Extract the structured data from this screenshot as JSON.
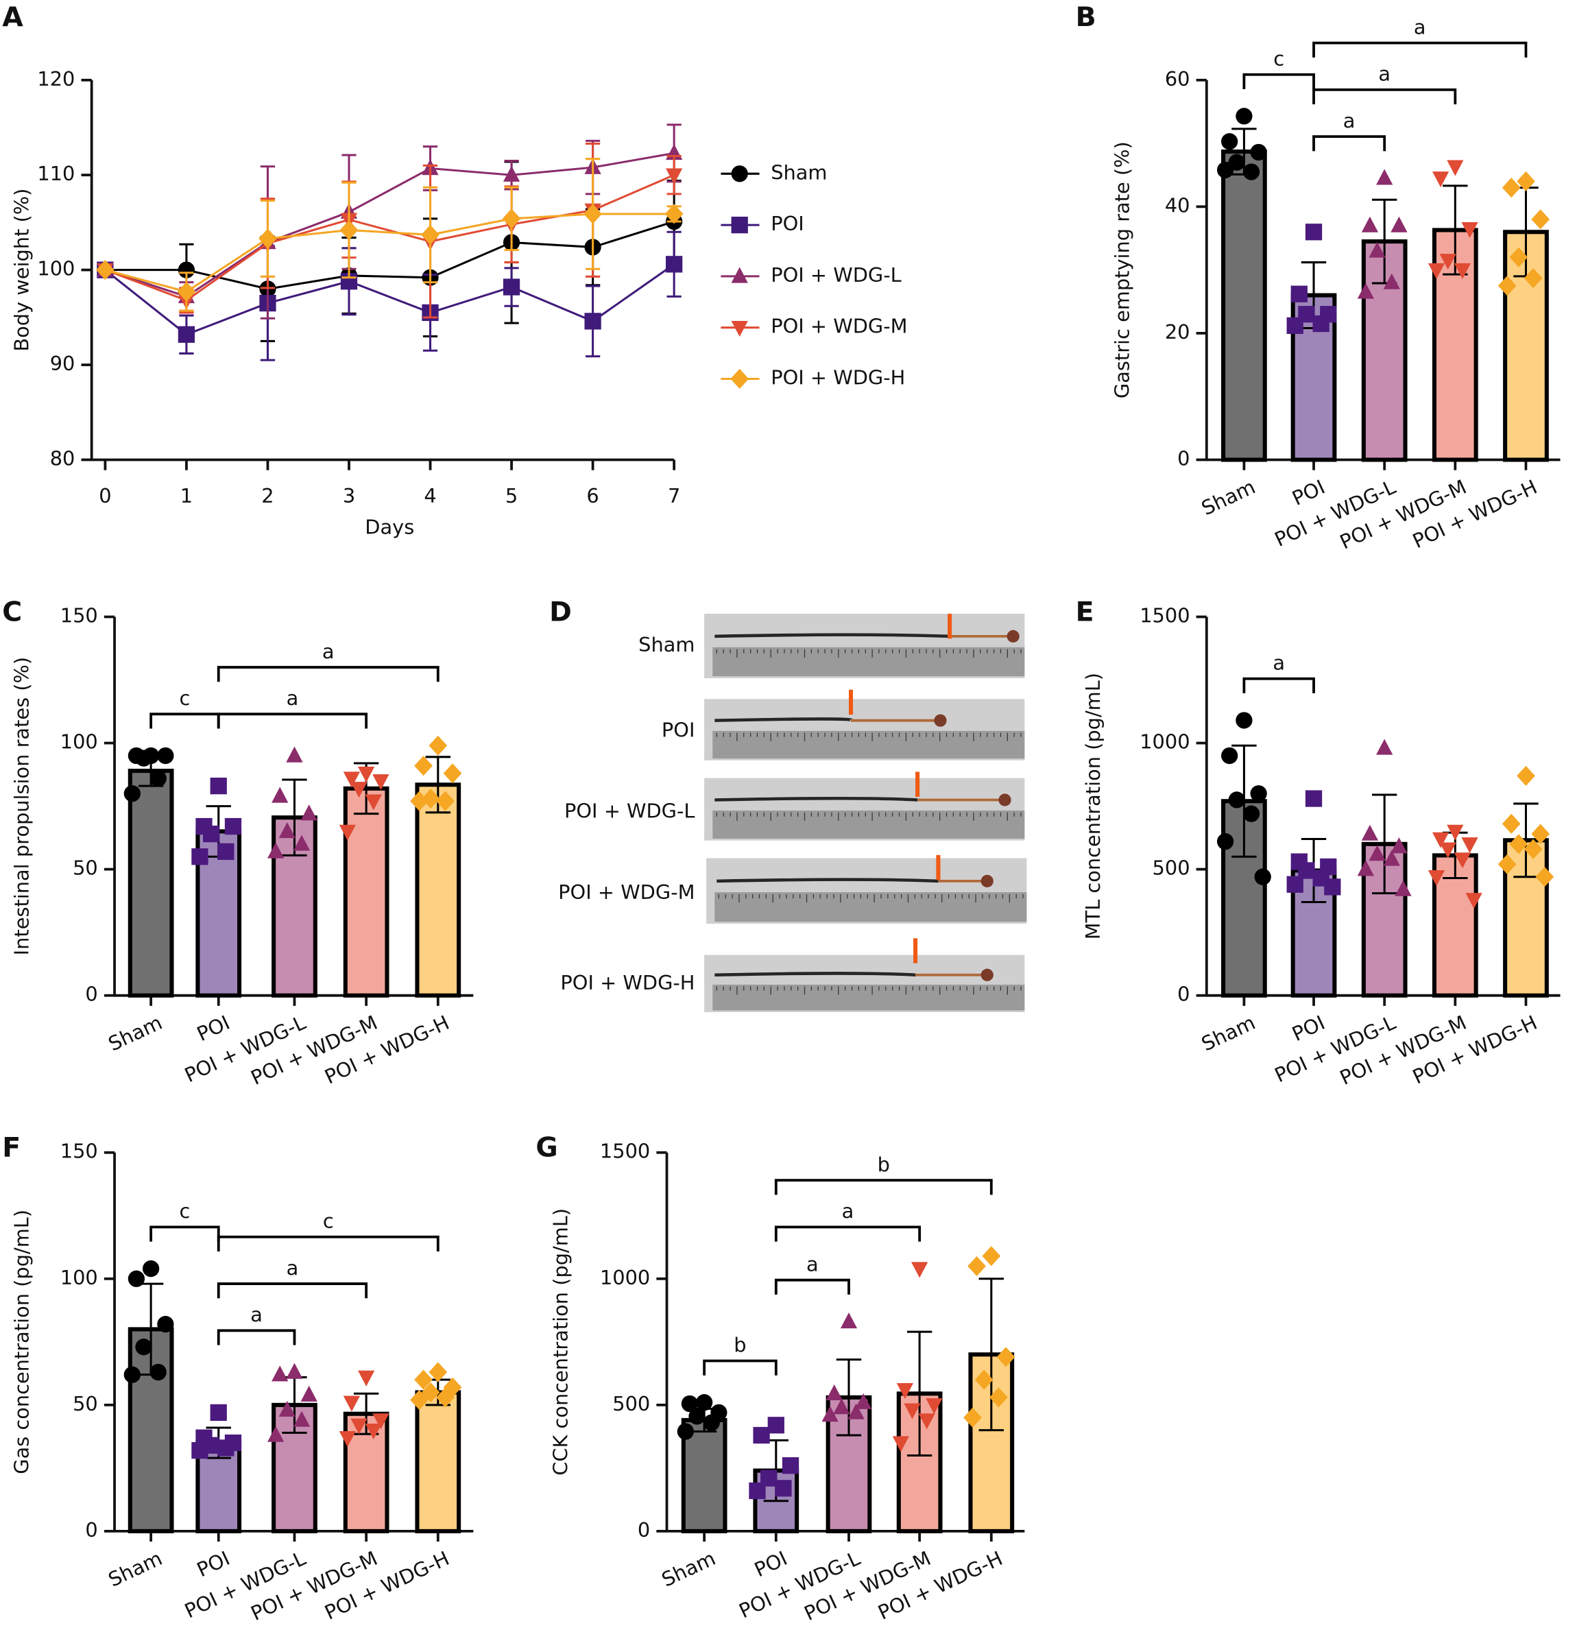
{
  "chart_data": [
    {
      "type": "line",
      "panel": "A",
      "ylabel": "Body weight (%)",
      "xlabel": "Days",
      "x": [
        0,
        1,
        2,
        3,
        4,
        5,
        6,
        7
      ],
      "xlim": [
        0,
        7
      ],
      "xticks": [
        0,
        1,
        2,
        3,
        4,
        5,
        6,
        7
      ],
      "ylim": [
        80,
        120
      ],
      "yticks": [
        80,
        90,
        100,
        110,
        120
      ],
      "legend": "right",
      "series": [
        {
          "name": "Sham",
          "color": "#000000",
          "marker": "circle",
          "values": [
            100,
            100,
            98,
            99.4,
            99.2,
            102.9,
            102.4,
            105.1
          ],
          "errors": [
            0,
            2.7,
            5.5,
            4,
            6.2,
            8.5,
            4,
            4.3
          ]
        },
        {
          "name": "POI",
          "color": "#3f1a7a",
          "marker": "square",
          "values": [
            100,
            93.2,
            96.5,
            98.8,
            95.5,
            98.2,
            94.6,
            100.6
          ],
          "errors": [
            0,
            2,
            6,
            3.5,
            4,
            2,
            3.7,
            3.4
          ]
        },
        {
          "name": "POI + WDG-L",
          "color": "#8b2c6b",
          "marker": "triangle-up",
          "values": [
            100,
            97.2,
            102.9,
            106.1,
            110.7,
            110,
            110.8,
            112.3
          ],
          "errors": [
            0,
            1.5,
            8,
            6,
            2.3,
            1.5,
            2.8,
            3
          ]
        },
        {
          "name": "POI + WDG-M",
          "color": "#e04b34",
          "marker": "triangle-down",
          "values": [
            100,
            96.8,
            102.8,
            105.3,
            103,
            104.8,
            106.3,
            110
          ],
          "errors": [
            0,
            1.3,
            4.7,
            4,
            8,
            4,
            7,
            2
          ]
        },
        {
          "name": "POI + WDG-H",
          "color": "#f5a623",
          "marker": "diamond",
          "values": [
            100,
            97.7,
            103.3,
            104.2,
            103.7,
            105.4,
            105.9,
            105.9
          ],
          "errors": [
            0,
            2,
            4,
            5,
            5,
            3.3,
            5.8,
            0.8
          ]
        }
      ]
    },
    {
      "type": "bar",
      "panel": "B",
      "ylabel": "Gastric emptying rate (%)",
      "categories": [
        "Sham",
        "POI",
        "POI + WDG-L",
        "POI + WDG-M",
        "POI + WDG-H"
      ],
      "values": [
        48.7,
        26,
        34.5,
        36.3,
        36
      ],
      "errors": [
        3.6,
        5.2,
        6.6,
        7,
        7
      ],
      "points": [
        [
          54.3,
          50.3,
          48.6,
          47,
          45.5,
          45.8
        ],
        [
          36,
          26.2,
          23,
          23,
          21.5,
          21.2
        ],
        [
          44.5,
          37,
          37,
          33,
          28,
          26.5
        ],
        [
          46.3,
          44.5,
          36.5,
          31.5,
          30,
          30
        ],
        [
          44,
          43,
          38,
          32,
          28.7,
          27.5
        ]
      ],
      "bar_colors": [
        "#707070",
        "#9e86b9",
        "#c68db1",
        "#f3a79c",
        "#fdd181"
      ],
      "point_colors": [
        "#000000",
        "#4b1a7f",
        "#8b2c6b",
        "#e04b34",
        "#f5a623"
      ],
      "markers": [
        "circle",
        "square",
        "triangle-up",
        "triangle-down",
        "diamond"
      ],
      "ylim": [
        0,
        60
      ],
      "yticks": [
        0,
        20,
        40,
        60
      ],
      "annotations": [
        {
          "from": "POI",
          "to": "POI + WDG-L",
          "label": "a"
        },
        {
          "from": "Sham",
          "to": "POI",
          "label": "c"
        },
        {
          "from": "POI",
          "to": "POI + WDG-M",
          "label": "a"
        },
        {
          "from": "POI",
          "to": "POI + WDG-H",
          "label": "a"
        }
      ]
    },
    {
      "type": "bar",
      "panel": "C",
      "ylabel": "Intestinal propulsion rates (%)",
      "categories": [
        "Sham",
        "POI",
        "POI + WDG-L",
        "POI + WDG-M",
        "POI + WDG-H"
      ],
      "values": [
        89,
        65,
        70.5,
        82,
        83.5
      ],
      "errors": [
        6,
        10,
        15,
        10,
        11
      ],
      "points": [
        [
          95,
          95,
          95,
          94,
          86,
          80
        ],
        [
          83,
          67,
          67,
          64,
          57,
          55
        ],
        [
          95,
          79,
          72,
          65,
          60,
          57
        ],
        [
          88,
          86,
          85,
          82,
          77,
          65
        ],
        [
          99,
          91,
          88,
          78,
          77,
          77
        ]
      ],
      "bar_colors": [
        "#707070",
        "#9e86b9",
        "#c68db1",
        "#f3a79c",
        "#fdd181"
      ],
      "point_colors": [
        "#000000",
        "#4b1a7f",
        "#8b2c6b",
        "#e04b34",
        "#f5a623"
      ],
      "markers": [
        "circle",
        "square",
        "triangle-up",
        "triangle-down",
        "diamond"
      ],
      "ylim": [
        0,
        150
      ],
      "yticks": [
        0,
        50,
        100,
        150
      ],
      "annotations": [
        {
          "from": "Sham",
          "to": "POI",
          "label": "c"
        },
        {
          "from": "POI",
          "to": "POI + WDG-M",
          "label": "a"
        },
        {
          "from": "POI",
          "to": "POI + WDG-H",
          "label": "a"
        }
      ]
    },
    {
      "type": "bar",
      "panel": "E",
      "ylabel": "MTL concentration (pg/mL)",
      "categories": [
        "Sham",
        "POI",
        "POI + WDG-L",
        "POI + WDG-M",
        "POI + WDG-H"
      ],
      "values": [
        770,
        495,
        600,
        555,
        615
      ],
      "errors": [
        220,
        125,
        195,
        90,
        145
      ],
      "points": [
        [
          1090,
          950,
          800,
          775,
          720,
          610,
          470
        ],
        [
          780,
          530,
          510,
          495,
          465,
          440,
          430
        ],
        [
          980,
          640,
          590,
          560,
          540,
          500,
          420
        ],
        [
          650,
          620,
          600,
          580,
          540,
          470,
          380
        ],
        [
          870,
          680,
          640,
          600,
          580,
          520,
          470
        ]
      ],
      "bar_colors": [
        "#707070",
        "#9e86b9",
        "#c68db1",
        "#f3a79c",
        "#fdd181"
      ],
      "point_colors": [
        "#000000",
        "#4b1a7f",
        "#8b2c6b",
        "#e04b34",
        "#f5a623"
      ],
      "markers": [
        "circle",
        "square",
        "triangle-up",
        "triangle-down",
        "diamond"
      ],
      "ylim": [
        0,
        1500
      ],
      "yticks": [
        0,
        500,
        1000,
        1500
      ],
      "annotations": [
        {
          "from": "Sham",
          "to": "POI",
          "label": "a"
        }
      ]
    },
    {
      "type": "bar",
      "panel": "F",
      "ylabel": "Gas concentration (pg/mL)",
      "categories": [
        "Sham",
        "POI",
        "POI + WDG-L",
        "POI + WDG-M",
        "POI + WDG-H"
      ],
      "values": [
        80,
        35,
        50,
        46.5,
        55
      ],
      "errors": [
        18,
        6,
        11,
        8,
        5
      ],
      "points": [
        [
          104,
          100,
          82,
          73,
          63,
          62
        ],
        [
          47,
          37,
          35,
          34,
          33,
          32
        ],
        [
          63,
          62,
          54,
          48,
          44,
          38
        ],
        [
          61,
          51,
          44,
          42,
          40,
          37
        ],
        [
          63,
          60,
          57,
          55,
          53,
          52
        ]
      ],
      "bar_colors": [
        "#707070",
        "#9e86b9",
        "#c68db1",
        "#f3a79c",
        "#fdd181"
      ],
      "point_colors": [
        "#000000",
        "#4b1a7f",
        "#8b2c6b",
        "#e04b34",
        "#f5a623"
      ],
      "markers": [
        "circle",
        "square",
        "triangle-up",
        "triangle-down",
        "diamond"
      ],
      "ylim": [
        0,
        150
      ],
      "yticks": [
        0,
        50,
        100,
        150
      ],
      "annotations": [
        {
          "from": "POI",
          "to": "POI + WDG-L",
          "label": "a"
        },
        {
          "from": "Sham",
          "to": "POI",
          "label": "c"
        },
        {
          "from": "POI",
          "to": "POI + WDG-M",
          "label": "a"
        },
        {
          "from": "POI",
          "to": "POI + WDG-H",
          "label": "c"
        }
      ]
    },
    {
      "type": "bar",
      "panel": "G",
      "ylabel": "CCK concentration (pg/mL)",
      "categories": [
        "Sham",
        "POI",
        "POI + WDG-L",
        "POI + WDG-M",
        "POI + WDG-H"
      ],
      "values": [
        440,
        240,
        530,
        545,
        700
      ],
      "errors": [
        45,
        120,
        150,
        245,
        300
      ],
      "points": [
        [
          510,
          505,
          470,
          455,
          430,
          395
        ],
        [
          420,
          380,
          260,
          210,
          170,
          160
        ],
        [
          830,
          545,
          510,
          490,
          470,
          460
        ],
        [
          1040,
          560,
          500,
          480,
          440,
          350
        ],
        [
          1090,
          1050,
          690,
          600,
          530,
          450
        ]
      ],
      "bar_colors": [
        "#707070",
        "#9e86b9",
        "#c68db1",
        "#f3a79c",
        "#fdd181"
      ],
      "point_colors": [
        "#000000",
        "#4b1a7f",
        "#8b2c6b",
        "#e04b34",
        "#f5a623"
      ],
      "markers": [
        "circle",
        "square",
        "triangle-up",
        "triangle-down",
        "diamond"
      ],
      "ylim": [
        0,
        1500
      ],
      "yticks": [
        0,
        500,
        1000,
        1500
      ],
      "annotations": [
        {
          "from": "POI",
          "to": "POI + WDG-L",
          "label": "a"
        },
        {
          "from": "Sham",
          "to": "POI",
          "label": "b"
        },
        {
          "from": "POI",
          "to": "POI + WDG-M",
          "label": "a"
        },
        {
          "from": "POI",
          "to": "POI + WDG-H",
          "label": "b"
        }
      ]
    }
  ],
  "image_panel": {
    "panel": "D",
    "labels": [
      "Sham",
      "POI",
      "POI + WDG-L",
      "POI + WDG-M",
      "POI + WDG-H"
    ]
  }
}
